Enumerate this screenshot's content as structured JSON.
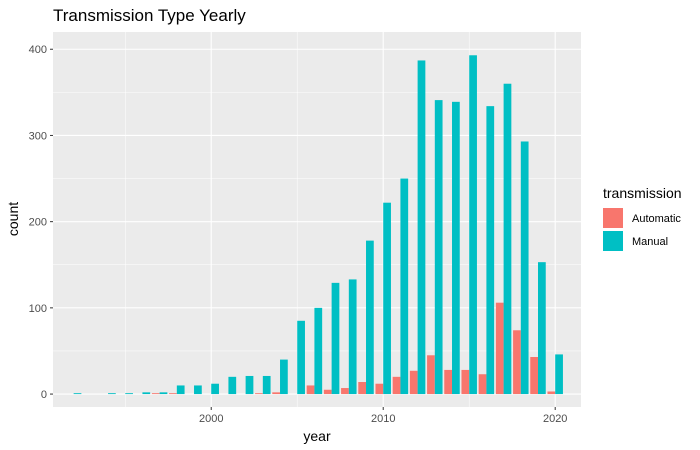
{
  "chart_data": {
    "type": "bar",
    "title": "Transmission Type Yearly",
    "xlabel": "year",
    "ylabel": "count",
    "xlim": [
      1990.8,
      2021.5
    ],
    "ylim": [
      -15,
      420
    ],
    "x_ticks": [
      2000,
      2010,
      2020
    ],
    "y_ticks": [
      0,
      100,
      200,
      300,
      400
    ],
    "grid": true,
    "legend": {
      "title": "transmission",
      "position": "right",
      "entries": [
        {
          "label": "Automatic",
          "color": "#F8766D"
        },
        {
          "label": "Manual",
          "color": "#00BFC4"
        }
      ]
    },
    "series": [
      {
        "name": "Automatic",
        "color": "#F8766D",
        "x": [
          1997,
          1998,
          2003,
          2004,
          2006,
          2007,
          2008,
          2009,
          2010,
          2011,
          2012,
          2013,
          2014,
          2015,
          2016,
          2017,
          2018,
          2019,
          2020
        ],
        "values": [
          1,
          1,
          1,
          2,
          10,
          5,
          7,
          14,
          12,
          20,
          27,
          45,
          28,
          28,
          23,
          106,
          74,
          43,
          3
        ]
      },
      {
        "name": "Manual",
        "color": "#00BFC4",
        "x": [
          1992,
          1994,
          1995,
          1996,
          1997,
          1998,
          1999,
          2000,
          2001,
          2002,
          2003,
          2004,
          2005,
          2006,
          2007,
          2008,
          2009,
          2010,
          2011,
          2012,
          2013,
          2014,
          2015,
          2016,
          2017,
          2018,
          2019,
          2020
        ],
        "values": [
          1,
          1,
          1,
          2,
          2,
          10,
          10,
          12,
          20,
          21,
          21,
          40,
          85,
          100,
          129,
          133,
          178,
          222,
          250,
          387,
          341,
          339,
          393,
          334,
          360,
          293,
          153,
          46
        ]
      }
    ]
  }
}
